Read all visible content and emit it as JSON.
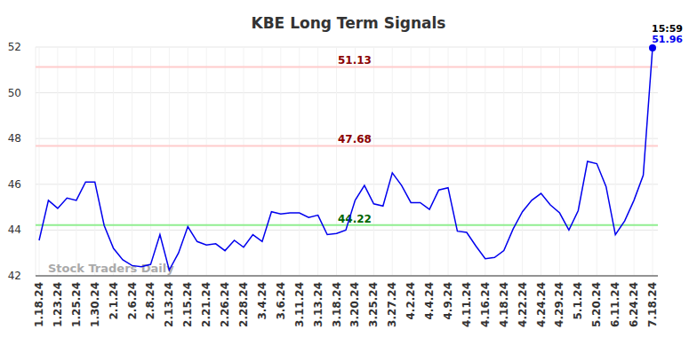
{
  "chart_data": {
    "type": "line",
    "title": "KBE Long Term Signals",
    "categories": [
      "1.18.24",
      null,
      "1.23.24",
      null,
      "1.25.24",
      null,
      "1.30.24",
      null,
      "2.1.24",
      null,
      "2.6.24",
      null,
      "2.8.24",
      null,
      "2.13.24",
      null,
      "2.15.24",
      null,
      "2.21.24",
      null,
      "2.26.24",
      null,
      "2.28.24",
      null,
      "3.4.24",
      null,
      "3.6.24",
      null,
      "3.11.24",
      null,
      "3.13.24",
      null,
      "3.18.24",
      null,
      "3.20.24",
      null,
      "3.25.24",
      null,
      "3.27.24",
      null,
      "4.2.24",
      null,
      "4.4.24",
      null,
      "4.9.24",
      null,
      "4.11.24",
      null,
      "4.16.24",
      null,
      "4.18.24",
      null,
      "4.22.24",
      null,
      "4.24.24",
      null,
      "4.29.24",
      null,
      "5.1.24",
      null,
      "5.20.24",
      null,
      "6.11.24",
      null,
      "6.24.24",
      null,
      "7.18.24"
    ],
    "series": [
      {
        "name": "KBE",
        "color": "#0000ee",
        "values": [
          43.55,
          45.3,
          44.95,
          45.4,
          45.3,
          46.1,
          46.1,
          44.2,
          43.2,
          42.7,
          42.45,
          42.4,
          42.5,
          43.8,
          42.25,
          43.0,
          44.15,
          43.5,
          43.35,
          43.4,
          43.1,
          43.55,
          43.25,
          43.8,
          43.5,
          44.8,
          44.7,
          44.75,
          44.75,
          44.55,
          44.65,
          43.8,
          43.85,
          44.0,
          45.3,
          45.95,
          45.15,
          45.05,
          46.5,
          45.95,
          45.2,
          45.2,
          44.9,
          45.75,
          45.85,
          43.95,
          43.9,
          43.3,
          42.75,
          42.8,
          43.1,
          44.05,
          44.8,
          45.3,
          45.6,
          45.1,
          44.75,
          44.0,
          44.85,
          47.0,
          46.9,
          45.9,
          43.8,
          44.4,
          45.3,
          46.4,
          51.96
        ]
      }
    ],
    "ylim": [
      42,
      52
    ],
    "yticks": [
      42,
      44,
      46,
      48,
      50,
      52
    ],
    "grid": true,
    "annotations": [
      {
        "value": 51.13,
        "label": "51.13",
        "color": "#ffcccc",
        "text_color": "#8b0000"
      },
      {
        "value": 47.68,
        "label": "47.68",
        "color": "#ffcccc",
        "text_color": "#8b0000"
      },
      {
        "value": 44.22,
        "label": "44.22",
        "color": "#90ee90",
        "text_color": "#006400"
      }
    ],
    "last_point": {
      "time": "15:59",
      "value": 51.96,
      "label": "51.96"
    },
    "watermark": "Stock Traders Daily"
  }
}
